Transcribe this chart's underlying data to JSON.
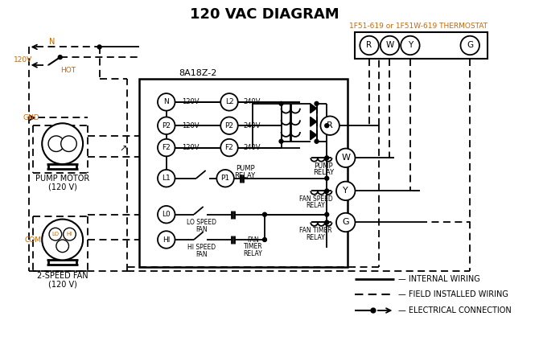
{
  "title": "120 VAC DIAGRAM",
  "bg": "#ffffff",
  "lc": "#000000",
  "oc": "#cc6600",
  "thermostat_label": "1F51-619 or 1F51W-619 THERMOSTAT",
  "box_label": "8A18Z-2"
}
